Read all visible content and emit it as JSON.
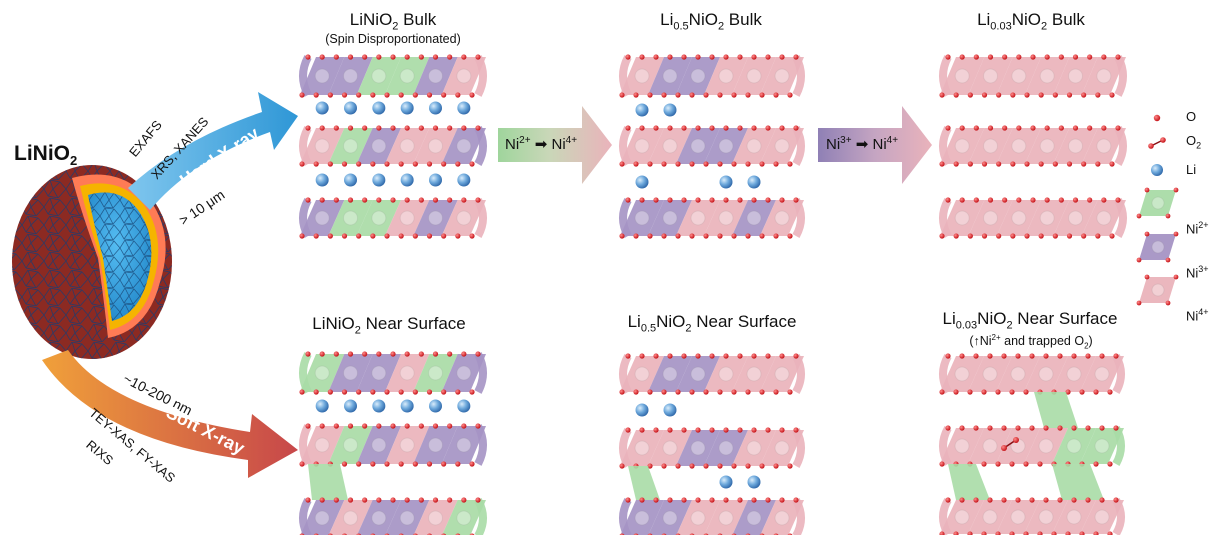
{
  "particle": {
    "formula_base": "LiNiO",
    "formula_sub": "2"
  },
  "hard_xray": {
    "arrow_label": "Hard X-ray",
    "techniques_line1": "EXAFS",
    "techniques_line2": "XRS, XANES",
    "depth": "> 10 μm",
    "color": "#3a9fd8"
  },
  "soft_xray": {
    "arrow_label": "Soft X-ray",
    "depth": "~10-200 nm",
    "techniques_line1": "TEY-XAS, FY-XAS",
    "techniques_line2": "RIXS",
    "color": "#c9484a"
  },
  "panels": {
    "bulk": [
      {
        "pre": "LiNiO",
        "sub1": "2",
        "post": " Bulk",
        "note": "(Spin Disproportionated)"
      },
      {
        "pre": "Li",
        "sub0": "0.5",
        "mid": "NiO",
        "sub1": "2",
        "post": " Bulk"
      },
      {
        "pre": "Li",
        "sub0": "0.03",
        "mid": "NiO",
        "sub1": "2",
        "post": " Bulk"
      }
    ],
    "surface": [
      {
        "pre": "LiNiO",
        "sub1": "2",
        "post": " Near Surface"
      },
      {
        "pre": "Li",
        "sub0": "0.5",
        "mid": "NiO",
        "sub1": "2",
        "post": " Near Surface"
      },
      {
        "pre": "Li",
        "sub0": "0.03",
        "mid": "NiO",
        "sub1": "2",
        "post": " Near Surface",
        "note_pre": "(↑Ni",
        "note_sup": "2+",
        "note_mid": " and trapped O",
        "note_sub": "2",
        "note_post": ")"
      }
    ]
  },
  "transitions": [
    {
      "from": "Ni",
      "from_sup": "2+",
      "to": "Ni",
      "to_sup": "4+"
    },
    {
      "from": "Ni",
      "from_sup": "3+",
      "to": "Ni",
      "to_sup": "4+"
    }
  ],
  "legend": {
    "o": "O",
    "o2": "O",
    "o2_sub": "2",
    "li": "Li",
    "ni2": "Ni",
    "ni2_sup": "2+",
    "ni3": "Ni",
    "ni3_sup": "3+",
    "ni4": "Ni",
    "ni4_sup": "4+"
  },
  "colors": {
    "ni2": "#a9dba6",
    "ni3": "#a594c4",
    "ni4": "#eab3bb",
    "oxygen": "#e0141b",
    "lithium": "#4b8fcf",
    "particle_shell": "#8c2a22",
    "particle_core": "#2f9fe0"
  }
}
